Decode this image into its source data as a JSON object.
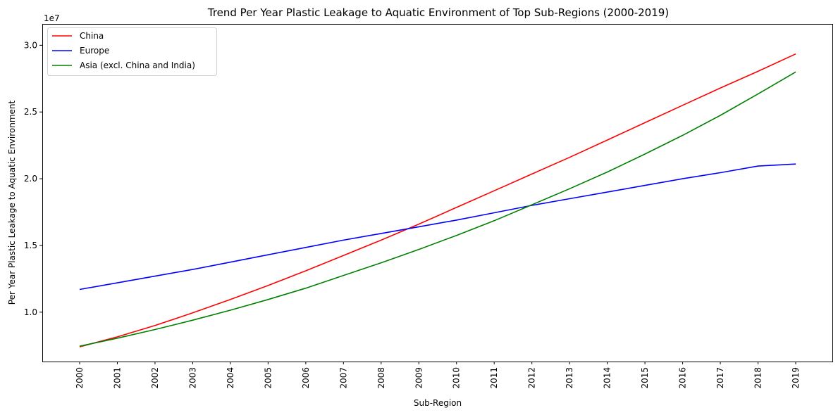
{
  "chart_data": {
    "type": "line",
    "title": "Trend Per Year Plastic Leakage to Aquatic Environment of Top Sub-Regions (2000-2019)",
    "xlabel": "Sub-Region",
    "ylabel": "Per Year Plastic Leakage to Aquatic Environment",
    "y_offset_label": "1e7",
    "categories": [
      "2000",
      "2001",
      "2002",
      "2003",
      "2004",
      "2005",
      "2006",
      "2007",
      "2008",
      "2009",
      "2010",
      "2011",
      "2012",
      "2013",
      "2014",
      "2015",
      "2016",
      "2017",
      "2018",
      "2019"
    ],
    "ylim": [
      6300000,
      31600000
    ],
    "yticks": [
      10000000,
      15000000,
      20000000,
      25000000,
      30000000
    ],
    "ytick_labels": [
      "1.0",
      "1.5",
      "2.0",
      "2.5",
      "3.0"
    ],
    "legend_position": "upper-left",
    "grid": false,
    "series": [
      {
        "name": "China",
        "color": "#ff0000",
        "values": [
          7400000,
          8150000,
          9000000,
          9950000,
          10950000,
          12000000,
          13100000,
          14250000,
          15400000,
          16600000,
          17850000,
          19100000,
          20350000,
          21600000,
          22900000,
          24200000,
          25500000,
          26800000,
          28050000,
          29350000
        ]
      },
      {
        "name": "Europe",
        "color": "#0000ff",
        "values": [
          11700000,
          12200000,
          12700000,
          13200000,
          13750000,
          14300000,
          14850000,
          15400000,
          15900000,
          16400000,
          16900000,
          17450000,
          18000000,
          18500000,
          19000000,
          19500000,
          20000000,
          20450000,
          20950000,
          21100000
        ]
      },
      {
        "name": "Asia (excl. China and India)",
        "color": "#008000",
        "values": [
          7450000,
          8050000,
          8700000,
          9400000,
          10150000,
          10950000,
          11800000,
          12750000,
          13700000,
          14700000,
          15750000,
          16850000,
          18050000,
          19250000,
          20500000,
          21850000,
          23250000,
          24750000,
          26350000,
          28000000
        ]
      }
    ]
  }
}
